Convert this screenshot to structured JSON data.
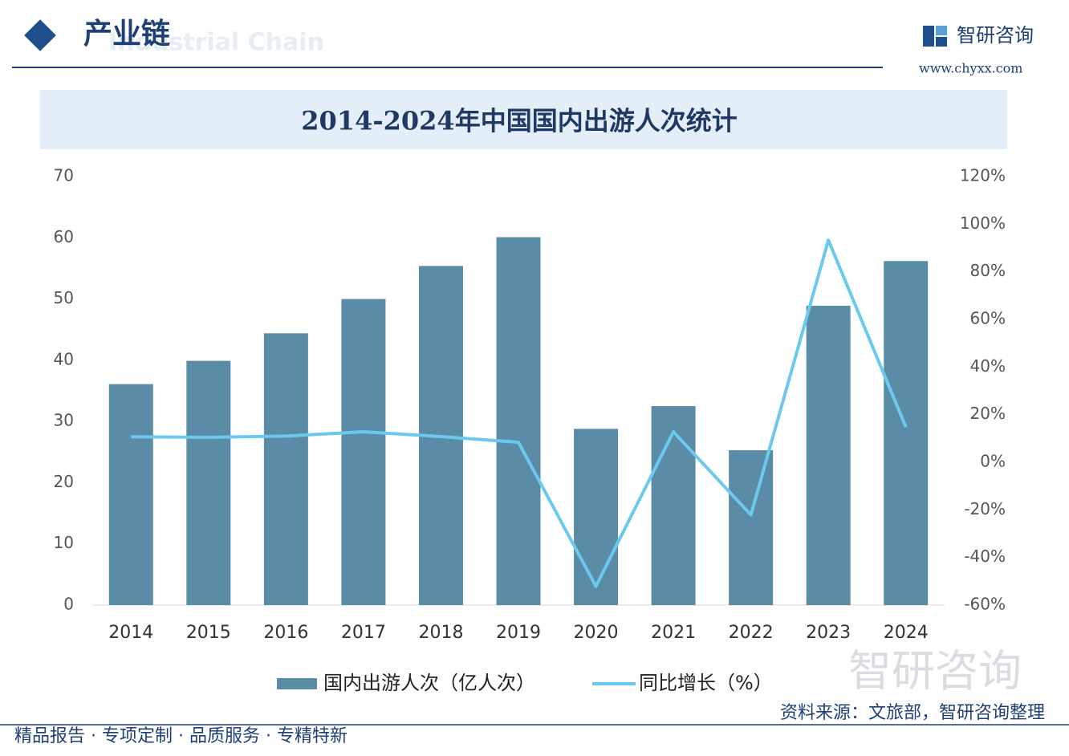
{
  "header": {
    "title": "产业链",
    "subtitle": "Industrial Chain",
    "brand": "智研咨询",
    "url": "www.chyxx.com"
  },
  "chart_data": {
    "type": "bar",
    "title": "2014-2024年中国国内出游人次统计",
    "categories": [
      "2014",
      "2015",
      "2016",
      "2017",
      "2018",
      "2019",
      "2020",
      "2021",
      "2022",
      "2023",
      "2024"
    ],
    "series": [
      {
        "name": "国内出游人次（亿人次）",
        "type": "bar",
        "color": "#5a8ca8",
        "values": [
          36.1,
          39.9,
          44.4,
          50.0,
          55.4,
          60.1,
          28.8,
          32.5,
          25.3,
          48.9,
          56.2
        ]
      },
      {
        "name": "同比增长（%）",
        "type": "line",
        "axis": "y2",
        "color": "#6cc9ee",
        "values": [
          10.7,
          10.5,
          11.0,
          12.8,
          10.8,
          8.4,
          -52.1,
          12.8,
          -22.1,
          93.3,
          14.8
        ]
      }
    ],
    "ylim": [
      0,
      70
    ],
    "yticks": [
      0,
      10,
      20,
      30,
      40,
      50,
      60,
      70
    ],
    "y2lim": [
      -60,
      120
    ],
    "y2ticks": [
      {
        "value": -60,
        "label": "-60%"
      },
      {
        "value": -40,
        "label": "-40%"
      },
      {
        "value": -20,
        "label": "-20%"
      },
      {
        "value": 0,
        "label": "0%"
      },
      {
        "value": 20,
        "label": "20%"
      },
      {
        "value": 40,
        "label": "40%"
      },
      {
        "value": 60,
        "label": "60%"
      },
      {
        "value": 80,
        "label": "80%"
      },
      {
        "value": 100,
        "label": "100%"
      },
      {
        "value": 120,
        "label": "120%"
      }
    ],
    "grid": false
  },
  "watermark": "智研咨询",
  "footer": {
    "slogan": "精品报告 · 专项定制 · 品质服务 · 专精特新",
    "source": "资料来源：文旅部，智研咨询整理"
  }
}
